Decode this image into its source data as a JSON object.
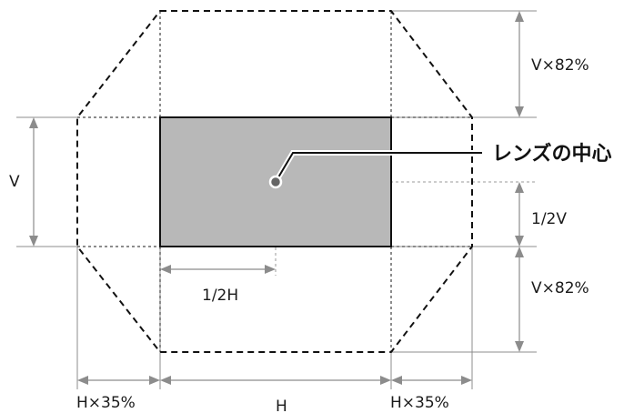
{
  "labels": {
    "lens_center": "レンズの中心",
    "v": "V",
    "v_top_offset": "V×82%",
    "v_bottom_offset": "V×82%",
    "half_v": "1/2V",
    "half_h": "1/2H",
    "h": "H",
    "h_left_offset": "H×35%",
    "h_right_offset": "H×35%"
  },
  "colors": {
    "screen_fill": "#b8b8b8",
    "outline": "#111111",
    "dimension_line": "#8c8c8c"
  }
}
